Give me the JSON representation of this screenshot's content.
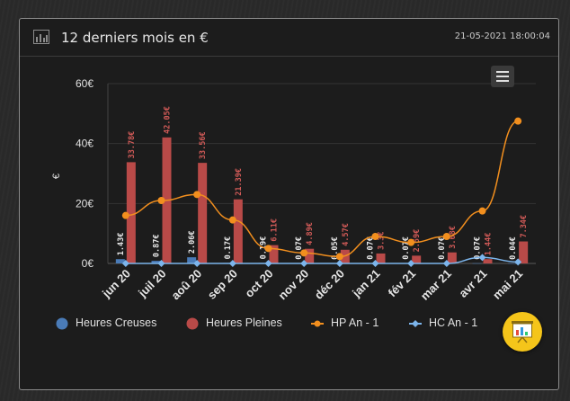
{
  "header": {
    "title": "12 derniers mois en €",
    "timestamp": "21-05-2021 18:00:04",
    "icon": "bar-chart-icon"
  },
  "menu_icon": "hamburger-menu-icon",
  "float_icon": "presentation-chart-icon",
  "chart_data": {
    "type": "bar",
    "ylabel": "€",
    "ylim": [
      0,
      60
    ],
    "yticks": [
      "0€",
      "20€",
      "40€",
      "60€"
    ],
    "categories": [
      "jun 20",
      "juil 20",
      "aoû 20",
      "sep 20",
      "oct 20",
      "nov 20",
      "déc 20",
      "jan 21",
      "fév 21",
      "mar 21",
      "avr 21",
      "mai 21"
    ],
    "series": [
      {
        "name": "Heures Creuses",
        "type": "bar",
        "color": "#4a7bb7",
        "values": [
          1.43,
          0.87,
          2.06,
          0.17,
          0.19,
          0.07,
          0.05,
          0.07,
          0.07,
          0.07,
          0.07,
          0.04
        ],
        "labels": [
          "1.43€",
          "0.87€",
          "2.06€",
          "0.17€",
          "0.19€",
          "0.07€",
          "0.05€",
          "0.07€",
          "0.07€",
          "0.07€",
          "0.07€",
          "0.04€"
        ]
      },
      {
        "name": "Heures Pleines",
        "type": "bar",
        "color": "#b94a48",
        "values": [
          33.78,
          42.05,
          33.56,
          21.39,
          6.11,
          4.89,
          4.57,
          3.32,
          2.59,
          3.68,
          1.44,
          7.34
        ],
        "labels": [
          "33.78€",
          "42.05€",
          "33.56€",
          "21.39€",
          "6.11€",
          "4.89€",
          "4.57€",
          "3.3€",
          "2.59€",
          "3.68€",
          "1.44€",
          "7.34€"
        ]
      },
      {
        "name": "HP An - 1",
        "type": "line",
        "color": "#f28f1e",
        "values": [
          16,
          21,
          23,
          14.5,
          5,
          3.5,
          2.3,
          9,
          7,
          9,
          17.5,
          47.5
        ]
      },
      {
        "name": "HC An - 1",
        "type": "line",
        "color": "#7cb5ec",
        "values": [
          0,
          0,
          0,
          0,
          0,
          0,
          0,
          0,
          0,
          0,
          2,
          0.5
        ]
      }
    ],
    "grid": true,
    "legend_position": "bottom"
  },
  "legend": [
    {
      "name": "Heures Creuses",
      "symbol": "circle",
      "color": "#4a7bb7"
    },
    {
      "name": "Heures Pleines",
      "symbol": "circle",
      "color": "#b94a48"
    },
    {
      "name": "HP An - 1",
      "symbol": "line-circle",
      "color": "#f28f1e"
    },
    {
      "name": "HC An - 1",
      "symbol": "line-diamond",
      "color": "#7cb5ec"
    }
  ]
}
